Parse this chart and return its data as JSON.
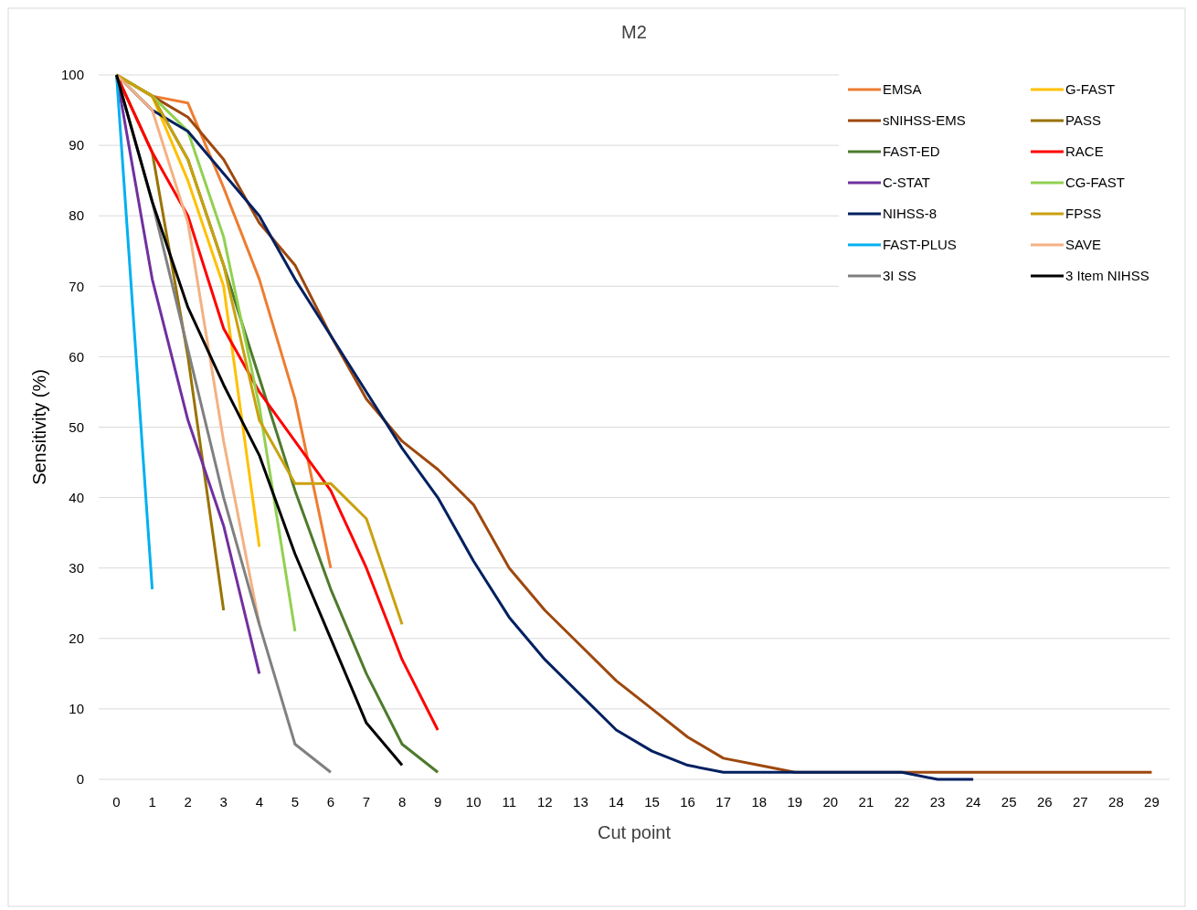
{
  "chart_data": {
    "type": "line",
    "title": "M2",
    "xlabel": "Cut point",
    "ylabel": "Sensitivity (%)",
    "xlim": [
      -0.5,
      29.5
    ],
    "xticks": [
      0,
      1,
      2,
      3,
      4,
      5,
      6,
      7,
      8,
      9,
      10,
      11,
      12,
      13,
      14,
      15,
      16,
      17,
      18,
      19,
      20,
      21,
      22,
      23,
      24,
      25,
      26,
      27,
      28,
      29
    ],
    "ylim": [
      0,
      100
    ],
    "yticks": [
      0,
      10,
      20,
      30,
      40,
      50,
      60,
      70,
      80,
      90,
      100
    ],
    "grid": "y",
    "legend": "top right",
    "marker": "none",
    "line_style": "solid",
    "series": [
      {
        "name": "EMSA",
        "color": "#ed7d31",
        "x": [
          0,
          1,
          2,
          3,
          4,
          5,
          6
        ],
        "values": [
          100,
          97,
          96,
          84,
          71,
          54,
          30
        ]
      },
      {
        "name": "G-FAST",
        "color": "#ffc000",
        "x": [
          0,
          1,
          2,
          3,
          4
        ],
        "values": [
          100,
          97,
          85,
          70,
          33
        ]
      },
      {
        "name": "sNIHSS-EMS",
        "color": "#9e480e",
        "x": [
          0,
          1,
          2,
          3,
          4,
          5,
          6,
          7,
          8,
          9,
          10,
          11,
          12,
          13,
          14,
          15,
          16,
          17,
          18,
          19,
          20,
          21,
          22,
          23,
          24,
          25,
          26,
          27,
          28,
          29
        ],
        "values": [
          100,
          97,
          94,
          88,
          79,
          73,
          63,
          54,
          48,
          44,
          39,
          30,
          24,
          19,
          14,
          10,
          6,
          3,
          2,
          1,
          1,
          1,
          1,
          1,
          1,
          1,
          1,
          1,
          1,
          1
        ]
      },
      {
        "name": "PASS",
        "color": "#997300",
        "x": [
          0,
          1,
          2,
          3
        ],
        "values": [
          100,
          89,
          60,
          24
        ]
      },
      {
        "name": "FAST-ED",
        "color": "#4e7a2c",
        "x": [
          0,
          1,
          2,
          3,
          4,
          5,
          6,
          7,
          8,
          9
        ],
        "values": [
          100,
          97,
          88,
          73,
          57,
          41,
          27,
          15,
          5,
          1
        ]
      },
      {
        "name": "RACE",
        "color": "#ff0000",
        "x": [
          0,
          1,
          2,
          3,
          4,
          5,
          6,
          7,
          8,
          9
        ],
        "values": [
          100,
          89,
          80,
          64,
          55,
          48,
          41,
          30,
          17,
          7
        ]
      },
      {
        "name": "C-STAT",
        "color": "#7030a0",
        "x": [
          0,
          1,
          2,
          3,
          4
        ],
        "values": [
          100,
          71,
          51,
          36,
          15
        ]
      },
      {
        "name": "CG-FAST",
        "color": "#92d050",
        "x": [
          0,
          1,
          2,
          3,
          4,
          5
        ],
        "values": [
          100,
          97,
          92,
          77,
          53,
          21
        ]
      },
      {
        "name": "NIHSS-8",
        "color": "#002060",
        "x": [
          0,
          1,
          2,
          3,
          4,
          5,
          6,
          7,
          8,
          9,
          10,
          11,
          12,
          13,
          14,
          15,
          16,
          17,
          18,
          19,
          20,
          21,
          22,
          23,
          24
        ],
        "values": [
          100,
          95,
          92,
          86,
          80,
          71,
          63,
          55,
          47,
          40,
          31,
          23,
          17,
          12,
          7,
          4,
          2,
          1,
          1,
          1,
          1,
          1,
          1,
          0,
          0
        ]
      },
      {
        "name": "FPSS",
        "color": "#c9a10e",
        "x": [
          0,
          1,
          2,
          3,
          4,
          5,
          6,
          7,
          8
        ],
        "values": [
          100,
          97,
          88,
          73,
          51,
          42,
          42,
          37,
          22
        ]
      },
      {
        "name": "FAST-PLUS",
        "color": "#00b0f0",
        "x": [
          0,
          1
        ],
        "values": [
          100,
          27
        ]
      },
      {
        "name": "SAVE",
        "color": "#f4b183",
        "x": [
          0,
          1,
          2,
          3,
          4
        ],
        "values": [
          100,
          95,
          79,
          48,
          22
        ]
      },
      {
        "name": "3I SS",
        "color": "#808080",
        "x": [
          0,
          1,
          2,
          3,
          4,
          5,
          6
        ],
        "values": [
          100,
          82,
          61,
          40,
          22,
          5,
          1
        ]
      },
      {
        "name": "3 Item NIHSS",
        "color": "#000000",
        "x": [
          0,
          1,
          2,
          3,
          4,
          5,
          6,
          7,
          8
        ],
        "values": [
          100,
          82,
          67,
          56,
          46,
          32,
          20,
          8,
          2
        ]
      }
    ]
  }
}
